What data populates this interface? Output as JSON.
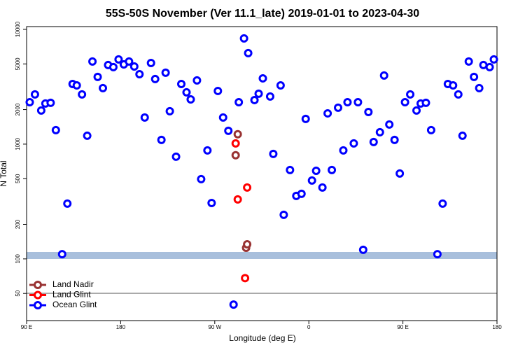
{
  "chart_data": {
    "type": "scatter",
    "title": "55S-50S November (Ver 11.1_late)   2019-01-01 to 2023-04-30",
    "xlabel": "Longitude (deg E)",
    "ylabel": "N Total",
    "xlim": [
      90,
      540
    ],
    "xticks": [
      {
        "value": 90,
        "label": "90 E"
      },
      180,
      {
        "value": 270,
        "label": "90 W"
      },
      {
        "value": 360,
        "label": "0"
      },
      {
        "value": 450,
        "label": "90 E"
      },
      {
        "value": 540,
        "label": "180"
      }
    ],
    "ylim": [
      29,
      10570
    ],
    "ylog": true,
    "yticks": [
      50,
      100,
      200,
      500,
      1000,
      2000,
      5000,
      10000
    ],
    "legend": "bottom-left",
    "series": [
      {
        "name": "Land Nadir",
        "color": "#993333",
        "x": [
          292,
          290,
          300,
          301
        ],
        "values": [
          1220,
          800,
          125,
          134
        ]
      },
      {
        "name": "Land Glint",
        "color": "#ff0000",
        "x": [
          290,
          301,
          292,
          299
        ],
        "values": [
          1014,
          419,
          330,
          68
        ]
      },
      {
        "name": "Ocean Glint",
        "color": "#0000ff",
        "x": [
          93,
          98,
          104,
          108,
          113,
          118,
          124,
          129,
          134,
          138,
          143,
          148,
          153,
          158,
          163,
          168,
          173,
          178,
          183,
          188,
          193,
          198,
          203,
          209,
          213,
          219,
          223,
          227,
          233,
          238,
          243,
          247,
          253,
          257,
          263,
          267,
          273,
          278,
          283,
          288,
          293,
          298,
          302,
          308,
          312,
          316,
          323,
          326,
          333,
          336,
          342,
          348,
          353,
          357,
          363,
          367,
          373,
          378,
          382,
          388,
          393,
          397,
          403,
          407,
          412,
          417,
          422,
          428,
          432,
          437,
          442,
          447,
          452,
          457,
          463,
          467,
          472,
          477,
          483,
          488,
          493,
          498,
          503,
          507,
          513,
          518,
          523,
          527,
          533,
          537
        ],
        "values": [
          2320,
          2710,
          1963,
          2258,
          2290,
          1324,
          110,
          303,
          3344,
          3250,
          2710,
          1183,
          5245,
          3850,
          3076,
          4887,
          4686,
          5470,
          4955,
          5245,
          4750,
          4070,
          1705,
          5095,
          3690,
          1088,
          4190,
          1935,
          777,
          3344,
          2826,
          2455,
          3590,
          496,
          881,
          307,
          2906,
          1705,
          1306,
          40,
          2320,
          8337,
          6205,
          2421,
          2748,
          3742,
          2600,
          822,
          3250,
          242,
          595,
          354,
          369,
          1658,
          482,
          586,
          419,
          1854,
          595,
          2075,
          881,
          2320,
          1014,
          2320,
          120,
          1906,
          1043,
          1270,
          3960,
          1482,
          1088,
          555,
          2320,
          2710,
          1963,
          2258,
          2290,
          1324,
          110,
          303,
          3344,
          3250,
          2710,
          1183,
          5245,
          3850,
          3076,
          4887,
          4686,
          5470
        ]
      }
    ]
  }
}
